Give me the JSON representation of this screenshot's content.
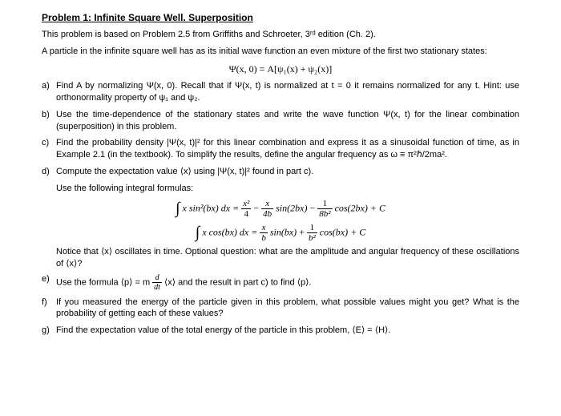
{
  "title": "Problem 1: Infinite Square Well. Superposition",
  "intro1": "This problem is based on Problem 2.5 from Griffiths and Schroeter, 3ʳᵈ edition (Ch. 2).",
  "intro2": "A particle in the infinite square well has as its initial wave function an even mixture of the first two stationary states:",
  "eq_initial": "Ψ(x, 0) = A[ψ₁(x) + ψ₂(x)]",
  "a": {
    "lbl": "a)",
    "text": "Find A by normalizing Ψ(x, 0). Recall that if Ψ(x, t) is normalized at t = 0 it remains normalized for any t. Hint: use orthonormality property of ψ₁ and ψ₂."
  },
  "b": {
    "lbl": "b)",
    "text": "Use the time-dependence of the stationary states and write the wave function Ψ(x, t) for the linear combination (superposition) in this problem."
  },
  "c": {
    "lbl": "c)",
    "text": "Find the probability density |Ψ(x, t)|² for this linear combination and express it as a sinusoidal function of time, as in Example 2.1 (in the textbook). To simplify the results, define the angular frequency as ω ≡ π²ℏ/2ma²."
  },
  "d": {
    "lbl": "d)",
    "text1": "Compute the expectation value ⟨x⟩ using |Ψ(x, t)|² found in part c).",
    "text2": "Use the following integral formulas:",
    "note": "Notice that ⟨x⟩ oscillates in time. Optional question: what are the amplitude and angular frequency of these oscillations of ⟨x⟩?"
  },
  "integral1": {
    "lhs_pre": "x sin²(bx) dx =",
    "t1n": "x²",
    "t1d": "4",
    "t2n": "x",
    "t2d": "4b",
    "t2rest": "sin(2bx)",
    "t3n": "1",
    "t3d": "8b²",
    "t3rest": "cos(2bx) + C"
  },
  "integral2": {
    "lhs_pre": "x cos(bx) dx =",
    "t1n": "x",
    "t1d": "b",
    "t1rest": "sin(bx)",
    "t2n": "1",
    "t2d": "b²",
    "t2rest": "cos(bx) + C"
  },
  "e": {
    "lbl": "e)",
    "pre": "Use the formula ⟨p⟩ = m",
    "fn": "d",
    "fd": "dt",
    "post": "⟨x⟩ and the result in part c) to find ⟨p⟩."
  },
  "f": {
    "lbl": "f)",
    "text": "If you measured the energy of the particle given in this problem, what possible values might you get? What is the probability of getting each of these values?"
  },
  "g": {
    "lbl": "g)",
    "text": "Find the expectation value of the total energy of the particle in this problem, ⟨E⟩ = ⟨H⟩."
  }
}
